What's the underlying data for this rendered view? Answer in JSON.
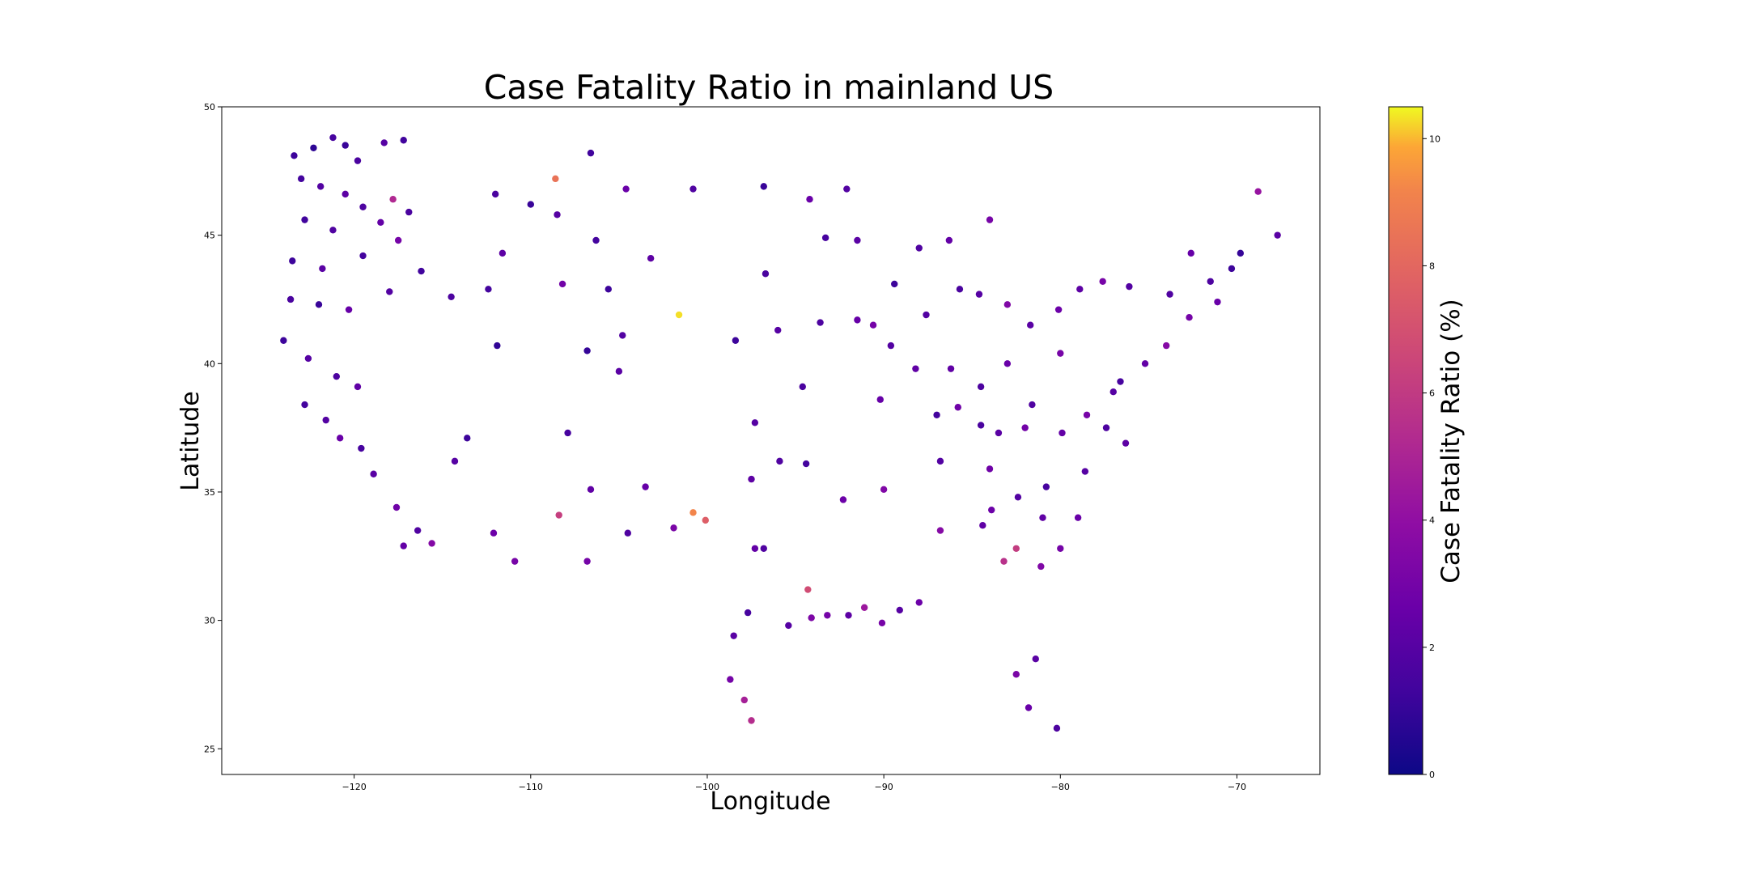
{
  "chart_data": {
    "type": "scatter",
    "title": "Case Fatality Ratio in mainland US",
    "xlabel": "Longitude",
    "ylabel": "Latitude",
    "xlim": [
      -127.5,
      -65.3
    ],
    "ylim": [
      24.0,
      50.0
    ],
    "xticks": [
      -120,
      -110,
      -100,
      -90,
      -80,
      -70
    ],
    "xtick_labels": [
      "−120",
      "−110",
      "−100",
      "−90",
      "−80",
      "−70"
    ],
    "yticks": [
      25,
      30,
      35,
      40,
      45,
      50
    ],
    "ytick_labels": [
      "25",
      "30",
      "35",
      "40",
      "45",
      "50"
    ],
    "grid": false,
    "colorbar": {
      "label": "Case Fatality Ratio (%)",
      "colormap": "plasma",
      "range": [
        0,
        10.5
      ],
      "ticks": [
        0,
        2,
        4,
        6,
        8,
        10
      ],
      "tick_labels": [
        "0",
        "2",
        "4",
        "6",
        "8",
        "10"
      ]
    },
    "points": [
      [
        -123.4,
        48.1,
        1.2
      ],
      [
        -122.3,
        48.4,
        0.8
      ],
      [
        -121.2,
        48.8,
        1.5
      ],
      [
        -120.5,
        48.5,
        1.1
      ],
      [
        -119.8,
        47.9,
        1.6
      ],
      [
        -118.3,
        48.6,
        2.0
      ],
      [
        -117.2,
        48.7,
        1.3
      ],
      [
        -123.0,
        47.2,
        1.4
      ],
      [
        -121.9,
        46.9,
        1.9
      ],
      [
        -120.5,
        46.6,
        2.2
      ],
      [
        -119.5,
        46.1,
        1.7
      ],
      [
        -117.8,
        46.4,
        5.2
      ],
      [
        -122.8,
        45.6,
        1.3
      ],
      [
        -121.2,
        45.2,
        1.8
      ],
      [
        -118.5,
        45.5,
        2.4
      ],
      [
        -116.9,
        45.9,
        1.6
      ],
      [
        -123.5,
        44.0,
        1.2
      ],
      [
        -121.8,
        43.7,
        2.1
      ],
      [
        -119.5,
        44.2,
        1.4
      ],
      [
        -117.5,
        44.8,
        3.0
      ],
      [
        -123.6,
        42.5,
        1.6
      ],
      [
        -122.0,
        42.3,
        1.1
      ],
      [
        -120.3,
        42.1,
        2.5
      ],
      [
        -118.0,
        42.8,
        1.9
      ],
      [
        -124.0,
        40.9,
        1.2
      ],
      [
        -122.6,
        40.2,
        2.0
      ],
      [
        -121.0,
        39.5,
        1.7
      ],
      [
        -119.8,
        39.1,
        2.3
      ],
      [
        -122.8,
        38.4,
        1.4
      ],
      [
        -121.6,
        37.8,
        1.9
      ],
      [
        -120.8,
        37.1,
        2.6
      ],
      [
        -119.6,
        36.7,
        1.5
      ],
      [
        -118.9,
        35.7,
        2.1
      ],
      [
        -117.6,
        34.4,
        2.8
      ],
      [
        -116.4,
        33.5,
        1.8
      ],
      [
        -117.2,
        32.9,
        2.4
      ],
      [
        -115.6,
        33.0,
        3.5
      ],
      [
        -114.3,
        36.2,
        2.0
      ],
      [
        -112.1,
        33.4,
        2.7
      ],
      [
        -110.9,
        32.3,
        3.1
      ],
      [
        -113.6,
        37.1,
        1.2
      ],
      [
        -111.9,
        40.7,
        0.9
      ],
      [
        -112.4,
        42.9,
        1.4
      ],
      [
        -114.5,
        42.6,
        1.7
      ],
      [
        -116.2,
        43.6,
        1.3
      ],
      [
        -111.6,
        44.3,
        2.2
      ],
      [
        -112.0,
        46.6,
        1.6
      ],
      [
        -110.0,
        46.2,
        1.1
      ],
      [
        -108.5,
        45.8,
        2.0
      ],
      [
        -108.6,
        47.2,
        8.5
      ],
      [
        -106.6,
        48.2,
        1.3
      ],
      [
        -104.6,
        46.8,
        2.6
      ],
      [
        -106.3,
        44.8,
        1.4
      ],
      [
        -108.2,
        43.1,
        2.9
      ],
      [
        -105.6,
        42.9,
        1.2
      ],
      [
        -104.8,
        41.1,
        1.9
      ],
      [
        -106.8,
        40.5,
        1.0
      ],
      [
        -105.0,
        39.7,
        2.1
      ],
      [
        -107.9,
        37.3,
        1.5
      ],
      [
        -106.6,
        35.1,
        2.3
      ],
      [
        -108.4,
        34.1,
        6.2
      ],
      [
        -106.8,
        32.3,
        3.0
      ],
      [
        -104.5,
        33.4,
        1.8
      ],
      [
        -103.5,
        35.2,
        2.5
      ],
      [
        -101.9,
        33.6,
        3.2
      ],
      [
        -101.6,
        41.9,
        10.3
      ],
      [
        -100.8,
        34.2,
        9.2
      ],
      [
        -100.1,
        33.9,
        7.6
      ],
      [
        -98.5,
        29.4,
        2.1
      ],
      [
        -97.7,
        30.3,
        1.5
      ],
      [
        -97.3,
        32.8,
        2.4
      ],
      [
        -96.8,
        32.8,
        1.8
      ],
      [
        -95.4,
        29.8,
        2.0
      ],
      [
        -94.1,
        30.1,
        3.3
      ],
      [
        -94.3,
        31.2,
        6.8
      ],
      [
        -93.2,
        30.2,
        3.0
      ],
      [
        -92.0,
        30.2,
        2.2
      ],
      [
        -91.1,
        30.5,
        4.4
      ],
      [
        -90.1,
        29.9,
        3.1
      ],
      [
        -89.1,
        30.4,
        2.0
      ],
      [
        -88.0,
        30.7,
        2.7
      ],
      [
        -86.8,
        33.5,
        3.6
      ],
      [
        -84.4,
        33.7,
        2.3
      ],
      [
        -83.2,
        32.3,
        5.6
      ],
      [
        -82.5,
        32.8,
        6.1
      ],
      [
        -81.1,
        32.1,
        3.4
      ],
      [
        -81.4,
        28.5,
        2.1
      ],
      [
        -82.5,
        27.9,
        3.2
      ],
      [
        -80.2,
        25.8,
        1.7
      ],
      [
        -81.8,
        26.6,
        2.6
      ],
      [
        -97.5,
        26.1,
        5.4
      ],
      [
        -97.9,
        26.9,
        4.8
      ],
      [
        -98.7,
        27.7,
        3.0
      ],
      [
        -84.0,
        35.9,
        2.8
      ],
      [
        -86.8,
        36.2,
        1.9
      ],
      [
        -90.0,
        35.1,
        3.4
      ],
      [
        -92.3,
        34.7,
        2.7
      ],
      [
        -94.4,
        36.1,
        1.4
      ],
      [
        -97.5,
        35.5,
        2.2
      ],
      [
        -95.9,
        36.2,
        1.8
      ],
      [
        -97.3,
        37.7,
        2.0
      ],
      [
        -94.6,
        39.1,
        1.6
      ],
      [
        -90.2,
        38.6,
        2.5
      ],
      [
        -87.6,
        41.9,
        1.9
      ],
      [
        -86.2,
        39.8,
        2.3
      ],
      [
        -84.5,
        39.1,
        1.7
      ],
      [
        -83.0,
        40.0,
        2.6
      ],
      [
        -81.7,
        41.5,
        2.1
      ],
      [
        -80.0,
        40.4,
        3.1
      ],
      [
        -77.0,
        38.9,
        2.0
      ],
      [
        -76.6,
        39.3,
        1.5
      ],
      [
        -75.2,
        40.0,
        2.4
      ],
      [
        -74.0,
        40.7,
        3.6
      ],
      [
        -73.8,
        42.7,
        1.8
      ],
      [
        -71.1,
        42.4,
        2.6
      ],
      [
        -72.7,
        41.8,
        3.0
      ],
      [
        -70.3,
        43.7,
        1.2
      ],
      [
        -69.8,
        44.3,
        1.0
      ],
      [
        -68.8,
        46.7,
        4.2
      ],
      [
        -67.7,
        45.0,
        2.1
      ],
      [
        -71.5,
        43.2,
        1.7
      ],
      [
        -72.6,
        44.3,
        2.5
      ],
      [
        -76.1,
        43.0,
        1.9
      ],
      [
        -78.9,
        42.9,
        2.2
      ],
      [
        -77.6,
        43.2,
        3.1
      ],
      [
        -80.1,
        42.1,
        2.7
      ],
      [
        -83.0,
        42.3,
        3.4
      ],
      [
        -84.6,
        42.7,
        2.0
      ],
      [
        -85.7,
        42.9,
        1.6
      ],
      [
        -86.3,
        44.8,
        2.4
      ],
      [
        -84.0,
        45.6,
        3.1
      ],
      [
        -88.0,
        44.5,
        1.8
      ],
      [
        -89.4,
        43.1,
        1.2
      ],
      [
        -91.5,
        44.8,
        2.1
      ],
      [
        -93.3,
        44.9,
        1.5
      ],
      [
        -92.1,
        46.8,
        1.9
      ],
      [
        -94.2,
        46.4,
        2.6
      ],
      [
        -96.8,
        46.9,
        1.1
      ],
      [
        -100.8,
        46.8,
        1.8
      ],
      [
        -103.2,
        44.1,
        2.2
      ],
      [
        -96.7,
        43.5,
        1.6
      ],
      [
        -98.4,
        40.9,
        1.2
      ],
      [
        -96.0,
        41.3,
        2.0
      ],
      [
        -93.6,
        41.6,
        1.7
      ],
      [
        -91.5,
        41.7,
        2.5
      ],
      [
        -90.6,
        41.5,
        3.0
      ],
      [
        -89.6,
        40.7,
        1.9
      ],
      [
        -88.2,
        39.8,
        2.3
      ],
      [
        -87.0,
        38.0,
        1.4
      ],
      [
        -85.8,
        38.3,
        2.8
      ],
      [
        -84.5,
        37.6,
        1.6
      ],
      [
        -83.5,
        37.3,
        2.1
      ],
      [
        -82.0,
        37.5,
        2.9
      ],
      [
        -81.6,
        38.4,
        1.8
      ],
      [
        -79.9,
        37.3,
        2.4
      ],
      [
        -78.5,
        38.0,
        3.1
      ],
      [
        -77.4,
        37.5,
        1.7
      ],
      [
        -76.3,
        36.9,
        2.2
      ],
      [
        -78.6,
        35.8,
        2.0
      ],
      [
        -80.8,
        35.2,
        1.5
      ],
      [
        -79.0,
        34.0,
        2.6
      ],
      [
        -80.0,
        32.8,
        3.0
      ],
      [
        -81.0,
        34.0,
        2.3
      ],
      [
        -82.4,
        34.8,
        1.9
      ],
      [
        -83.9,
        34.3,
        2.7
      ]
    ]
  }
}
